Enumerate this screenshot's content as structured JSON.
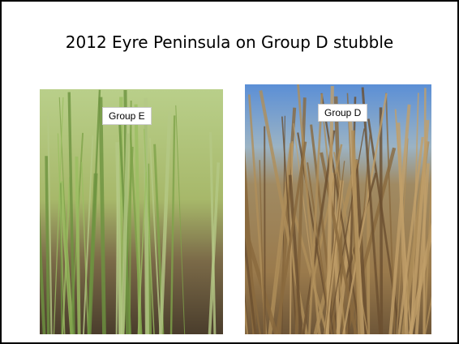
{
  "title": "2012 Eyre Peninsula on Group D stubble",
  "photos": [
    {
      "label": "Group E"
    },
    {
      "label": "Group D"
    }
  ]
}
